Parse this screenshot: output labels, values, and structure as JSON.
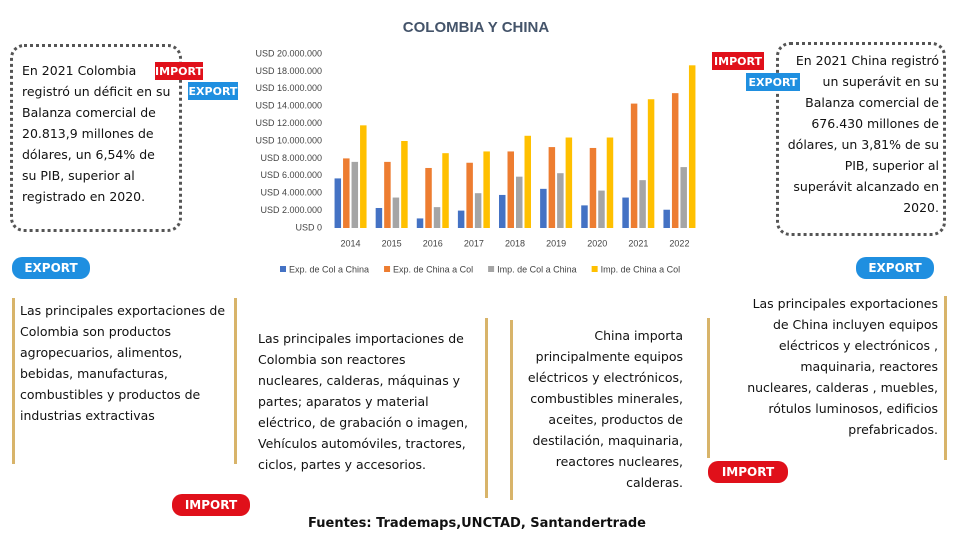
{
  "chart_data": {
    "type": "bar",
    "title": "COLOMBIA Y CHINA",
    "categories": [
      "2014",
      "2015",
      "2016",
      "2017",
      "2018",
      "2019",
      "2020",
      "2021",
      "2022"
    ],
    "series": [
      {
        "name": "Exp. de Col a China",
        "color": "#4472c4",
        "values": [
          5700000,
          2300000,
          1100000,
          2000000,
          3800000,
          4500000,
          2600000,
          3500000,
          2100000
        ]
      },
      {
        "name": "Exp. de China a Col",
        "color": "#ed7d31",
        "values": [
          8000000,
          7600000,
          6900000,
          7500000,
          8800000,
          9300000,
          9200000,
          14300000,
          15500000
        ]
      },
      {
        "name": "Imp. de Col a China",
        "color": "#a5a5a5",
        "values": [
          7600000,
          3500000,
          2400000,
          4000000,
          5900000,
          6300000,
          4300000,
          5500000,
          7000000
        ]
      },
      {
        "name": "Imp. de China a Col",
        "color": "#ffc000",
        "values": [
          11800000,
          10000000,
          8600000,
          8800000,
          10600000,
          10400000,
          10400000,
          14800000,
          18700000
        ]
      }
    ],
    "ylim": [
      0,
      20000000
    ],
    "yticks": [
      {
        "value": 0,
        "label": "USD 0"
      },
      {
        "value": 2000000,
        "label": "USD 2.000.000"
      },
      {
        "value": 4000000,
        "label": "USD 4.000.000"
      },
      {
        "value": 6000000,
        "label": "USD 6.000.000"
      },
      {
        "value": 8000000,
        "label": "USD 8.000.000"
      },
      {
        "value": 10000000,
        "label": "USD 10.000.000"
      },
      {
        "value": 12000000,
        "label": "USD 12.000.000"
      },
      {
        "value": 14000000,
        "label": "USD 14.000.000"
      },
      {
        "value": 16000000,
        "label": "USD 16.000.000"
      },
      {
        "value": 18000000,
        "label": "USD 18.000.000"
      },
      {
        "value": 20000000,
        "label": "USD 20.000.000"
      }
    ],
    "grid": false,
    "legend": "bottom"
  },
  "notes": {
    "colombia_deficit": "En 2021 Colombia registró un déficit en su Balanza comercial de 20.813,9 millones de dólares, un 6,54% de su PIB, superior al registrado en 2020.",
    "china_superavit": "En 2021 China registró un superávit en su Balanza comercial de 676.430 millones de dólares, un 3,81% de su PIB, superior al superávit alcanzado en 2020.",
    "colombia_exports": "Las principales exportaciones de Colombia son productos agropecuarios, alimentos, bebidas, manufacturas, combustibles y productos de industrias extractivas",
    "colombia_imports": "Las principales importaciones de Colombia son reactores nucleares, calderas, máquinas y partes; aparatos y material eléctrico, de grabación o imagen, Vehículos automóviles, tractores, ciclos, partes y accesorios.",
    "china_imports": "China importa principalmente equipos eléctricos y electrónicos, combustibles minerales, aceites, productos de destilación, maquinaria, reactores nucleares, calderas.",
    "china_exports": "Las principales exportaciones de China incluyen equipos eléctricos y electrónicos , maquinaria, reactores nucleares, calderas , muebles, rótulos luminosos, edificios prefabricados."
  },
  "badges": [
    "IMPORT",
    "EXPORT",
    "IMPORT",
    "EXPORT",
    "EXPORT",
    "EXPORT",
    "IMPORT",
    "IMPORT"
  ],
  "footer": "Fuentes: Trademaps,UNCTAD, Santandertrade"
}
